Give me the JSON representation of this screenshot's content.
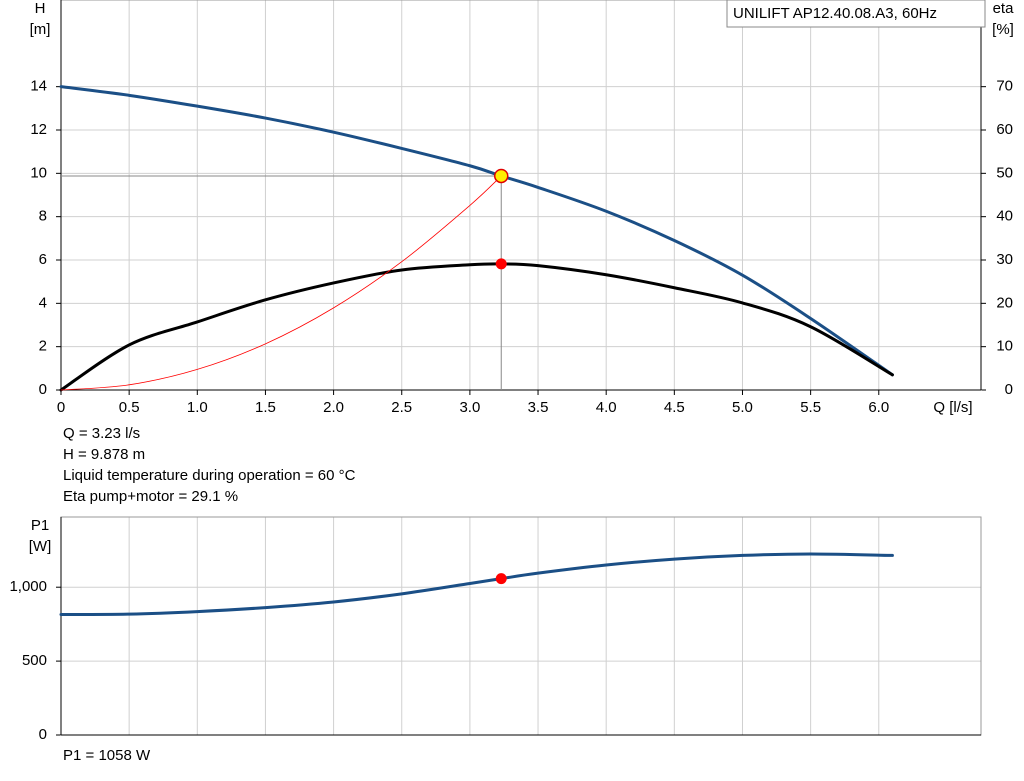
{
  "legend_box": "UNILIFT AP12.40.08.A3, 60Hz",
  "chart_data": [
    {
      "type": "line",
      "y_label": "H",
      "y_unit": "[m]",
      "y2_label": "eta",
      "y2_unit": "[%]",
      "x_label": "Q [l/s]",
      "xlim": [
        0,
        6.75
      ],
      "xticks": [
        0,
        0.5,
        {
          "value": 1,
          "label": "1.0"
        },
        1.5,
        {
          "value": 2,
          "label": "2.0"
        },
        2.5,
        {
          "value": 3,
          "label": "3.0"
        },
        3.5,
        {
          "value": 4,
          "label": "4.0"
        },
        4.5,
        {
          "value": 5,
          "label": "5.0"
        },
        5.5,
        {
          "value": 6,
          "label": "6.0"
        }
      ],
      "ylim": [
        0,
        18
      ],
      "yticks": [
        0,
        2,
        4,
        6,
        8,
        10,
        12,
        14
      ],
      "y2lim": [
        0,
        90
      ],
      "y2ticks": [
        0,
        10,
        20,
        30,
        40,
        50,
        60,
        70
      ],
      "grid": true,
      "x": [
        0,
        0.5,
        1,
        1.5,
        2,
        2.5,
        3,
        3.23,
        3.5,
        4,
        4.5,
        5,
        5.5,
        6.1
      ],
      "series": [
        {
          "color": "#1b4f86",
          "values": [
            14,
            13.6,
            13.1,
            12.55,
            11.9,
            11.15,
            10.35,
            9.878,
            9.35,
            8.25,
            6.9,
            5.3,
            3.3,
            0.7
          ]
        },
        {
          "color": "#000000",
          "axis": "y2",
          "values": [
            0,
            10.4,
            15.7,
            20.8,
            24.7,
            27.7,
            28.9,
            29.1,
            28.7,
            26.6,
            23.6,
            20.1,
            14.6,
            3.5
          ]
        },
        {
          "color": "#ff0000",
          "values": [
            0,
            0.24,
            0.95,
            2.13,
            3.79,
            5.92,
            8.52,
            9.878,
            null,
            null,
            null,
            null,
            null,
            null
          ]
        }
      ],
      "info": [
        "Q = 3.23 l/s",
        "H = 9.878 m",
        "Liquid temperature during operation = 60 °C",
        "Eta pump+motor = 29.1 %"
      ]
    },
    {
      "type": "line",
      "y_label": "P1",
      "y_unit": "[W]",
      "xlim": [
        0,
        6.75
      ],
      "ylim": [
        0,
        1475
      ],
      "yticks": [
        0,
        500,
        {
          "value": 1000,
          "label": "1,000"
        }
      ],
      "grid": true,
      "x": [
        0,
        0.5,
        1,
        1.5,
        2,
        2.5,
        3,
        3.23,
        3.5,
        4,
        4.5,
        5,
        5.5,
        6.1
      ],
      "series": [
        {
          "color": "#1b4f86",
          "values": [
            815,
            818,
            835,
            862,
            900,
            955,
            1025,
            1058,
            1095,
            1150,
            1190,
            1215,
            1225,
            1215
          ]
        }
      ],
      "info": [
        "P1 = 1058 W"
      ]
    }
  ]
}
